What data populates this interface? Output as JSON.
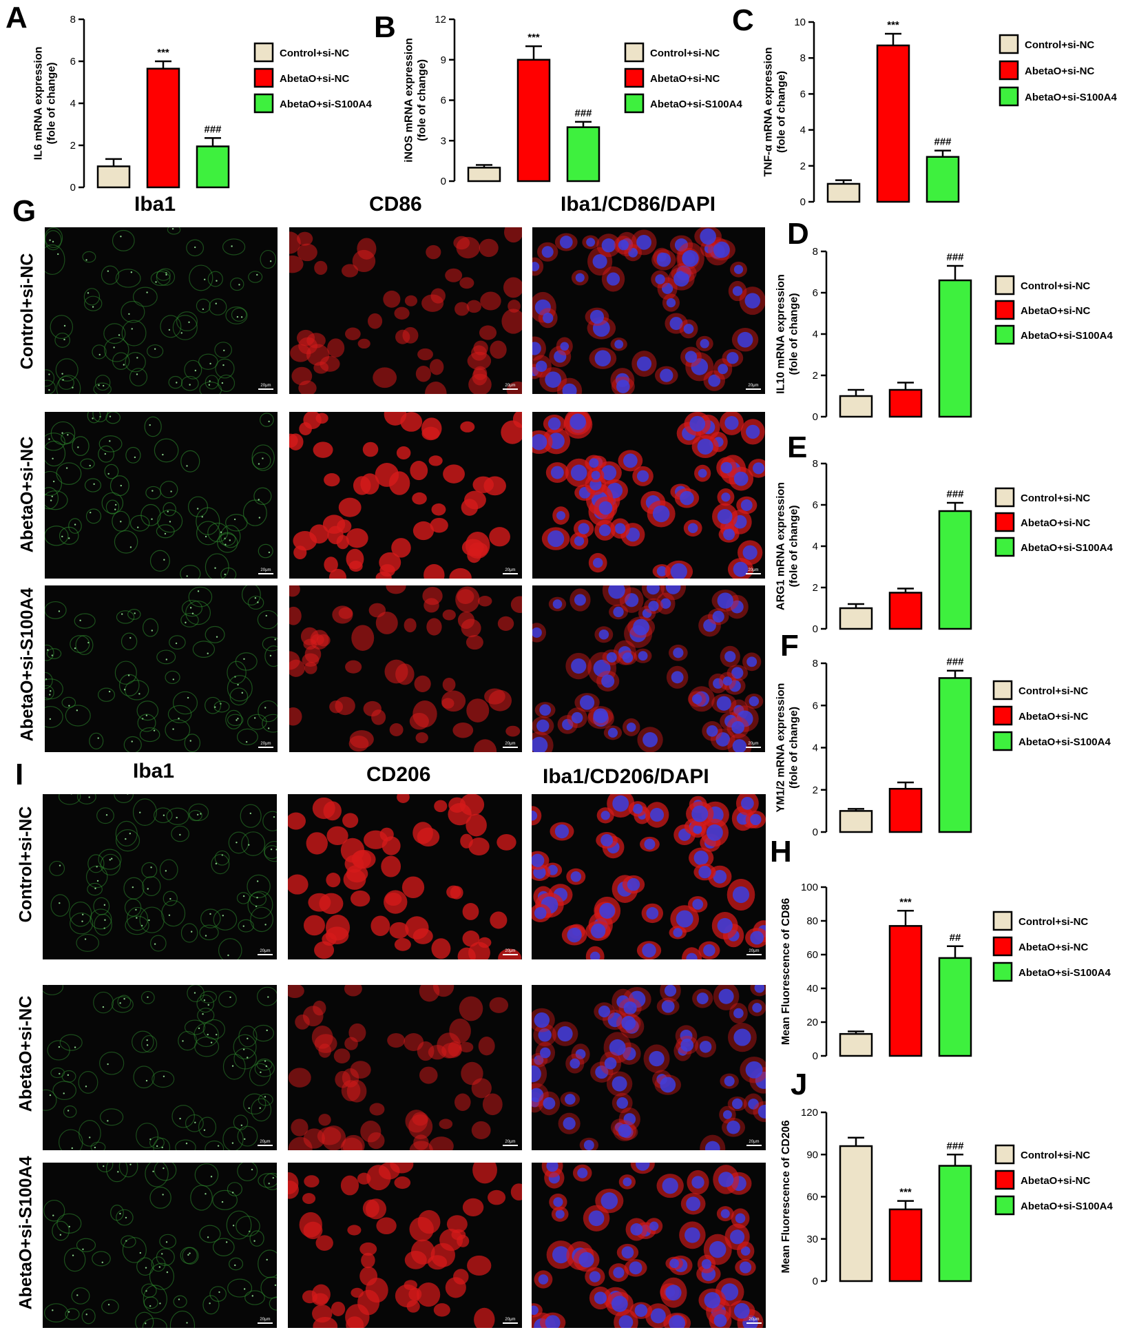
{
  "panel_letters": [
    "A",
    "B",
    "C",
    "D",
    "E",
    "F",
    "G",
    "H",
    "I",
    "J"
  ],
  "microscopy": {
    "G": {
      "columns": [
        "Iba1",
        "CD86",
        "Iba1/CD86/DAPI"
      ],
      "rows": [
        "Control+si-NC",
        "AbetaO+si-NC",
        "AbetaO+si-S100A4"
      ]
    },
    "I": {
      "columns": [
        "Iba1",
        "CD206",
        "Iba1/CD206/DAPI"
      ],
      "rows": [
        "Control+si-NC",
        "AbetaO+si-NC",
        "AbetaO+si-S100A4"
      ]
    },
    "scale_bar_label": "20μm",
    "colors": {
      "green": "#2f8f2f",
      "red": "#d61a1a",
      "blue": "#3b3ee0",
      "background": "#060606"
    }
  },
  "colors": {
    "Control+si-NC": "#ede3c8",
    "AbetaO+si-NC": "#ff0000",
    "AbetaO+si-S100A4": "#3ef03e"
  },
  "chart_data": [
    {
      "panel": "A",
      "type": "bar",
      "ylabel": [
        "IL6 mRNA expression",
        "(fole of change)"
      ],
      "ylim": [
        0,
        8
      ],
      "yticks": [
        0,
        2,
        4,
        6,
        8
      ],
      "categories": [
        "Control+si-NC",
        "AbetaO+si-NC",
        "AbetaO+si-S100A4"
      ],
      "values": [
        1.0,
        5.65,
        1.95
      ],
      "errors": [
        0.35,
        0.35,
        0.4
      ],
      "annotations": [
        "",
        "***",
        "###"
      ],
      "legend": [
        "Control+si-NC",
        "AbetaO+si-NC",
        "AbetaO+si-S100A4"
      ]
    },
    {
      "panel": "B",
      "type": "bar",
      "ylabel": [
        "iNOS mRNA expression",
        "(fole of change)"
      ],
      "ylim": [
        0,
        12
      ],
      "yticks": [
        0,
        3,
        6,
        9,
        12
      ],
      "categories": [
        "Control+si-NC",
        "AbetaO+si-NC",
        "AbetaO+si-S100A4"
      ],
      "values": [
        1.0,
        9.0,
        4.0
      ],
      "errors": [
        0.2,
        1.0,
        0.4
      ],
      "annotations": [
        "",
        "***",
        "###"
      ],
      "legend": [
        "Control+si-NC",
        "AbetaO+si-NC",
        "AbetaO+si-S100A4"
      ]
    },
    {
      "panel": "C",
      "type": "bar",
      "ylabel": [
        "TNF-α mRNA expression",
        "(fole of change)"
      ],
      "ylim": [
        0,
        10
      ],
      "yticks": [
        0,
        2,
        4,
        6,
        8,
        10
      ],
      "categories": [
        "Control+si-NC",
        "AbetaO+si-NC",
        "AbetaO+si-S100A4"
      ],
      "values": [
        1.0,
        8.7,
        2.5
      ],
      "errors": [
        0.2,
        0.65,
        0.35
      ],
      "annotations": [
        "",
        "***",
        "###"
      ],
      "legend": [
        "Control+si-NC",
        "AbetaO+si-NC",
        "AbetaO+si-S100A4"
      ]
    },
    {
      "panel": "D",
      "type": "bar",
      "ylabel": [
        "IL10 mRNA expression",
        "(fole of change)"
      ],
      "ylim": [
        0,
        8
      ],
      "yticks": [
        0,
        2,
        4,
        6,
        8
      ],
      "categories": [
        "Control+si-NC",
        "AbetaO+si-NC",
        "AbetaO+si-S100A4"
      ],
      "values": [
        1.0,
        1.3,
        6.6
      ],
      "errors": [
        0.3,
        0.35,
        0.7
      ],
      "annotations": [
        "",
        "",
        "###"
      ],
      "legend": [
        "Control+si-NC",
        "AbetaO+si-NC",
        "AbetaO+si-S100A4"
      ]
    },
    {
      "panel": "E",
      "type": "bar",
      "ylabel": [
        "ARG1 mRNA expression",
        "(fole of change)"
      ],
      "ylim": [
        0,
        8
      ],
      "yticks": [
        0,
        2,
        4,
        6,
        8
      ],
      "categories": [
        "Control+si-NC",
        "AbetaO+si-NC",
        "AbetaO+si-S100A4"
      ],
      "values": [
        1.0,
        1.75,
        5.7
      ],
      "errors": [
        0.2,
        0.2,
        0.4
      ],
      "annotations": [
        "",
        "",
        "###"
      ],
      "legend": [
        "Control+si-NC",
        "AbetaO+si-NC",
        "AbetaO+si-S100A4"
      ]
    },
    {
      "panel": "F",
      "type": "bar",
      "ylabel": [
        "YM1/2 mRNA expression",
        "(fole of change)"
      ],
      "ylim": [
        0,
        8
      ],
      "yticks": [
        0,
        2,
        4,
        6,
        8
      ],
      "categories": [
        "Control+si-NC",
        "AbetaO+si-NC",
        "AbetaO+si-S100A4"
      ],
      "values": [
        1.0,
        2.05,
        7.3
      ],
      "errors": [
        0.1,
        0.3,
        0.35
      ],
      "annotations": [
        "",
        "",
        "###"
      ],
      "legend": [
        "Control+si-NC",
        "AbetaO+si-NC",
        "AbetaO+si-S100A4"
      ]
    },
    {
      "panel": "H",
      "type": "bar",
      "ylabel": [
        "Mean Fluorescence of CD86"
      ],
      "ylim": [
        0,
        100
      ],
      "yticks": [
        0,
        20,
        40,
        60,
        80,
        100
      ],
      "categories": [
        "Control+si-NC",
        "AbetaO+si-NC",
        "AbetaO+si-S100A4"
      ],
      "values": [
        13,
        77,
        58
      ],
      "errors": [
        1.5,
        9,
        7
      ],
      "annotations": [
        "",
        "***",
        "##"
      ],
      "legend": [
        "Control+si-NC",
        "AbetaO+si-NC",
        "AbetaO+si-S100A4"
      ]
    },
    {
      "panel": "J",
      "type": "bar",
      "ylabel": [
        "Mean Fluorescence of CD206"
      ],
      "ylim": [
        0,
        120
      ],
      "yticks": [
        0,
        30,
        60,
        90,
        120
      ],
      "categories": [
        "Control+si-NC",
        "AbetaO+si-NC",
        "AbetaO+si-S100A4"
      ],
      "values": [
        96,
        51,
        82
      ],
      "errors": [
        6,
        6,
        8
      ],
      "annotations": [
        "",
        "***",
        "###"
      ],
      "legend": [
        "Control+si-NC",
        "AbetaO+si-NC",
        "AbetaO+si-S100A4"
      ]
    }
  ]
}
